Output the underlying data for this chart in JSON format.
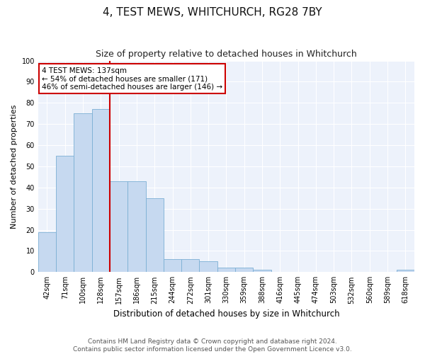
{
  "title": "4, TEST MEWS, WHITCHURCH, RG28 7BY",
  "subtitle": "Size of property relative to detached houses in Whitchurch",
  "xlabel": "Distribution of detached houses by size in Whitchurch",
  "ylabel": "Number of detached properties",
  "footer_line1": "Contains HM Land Registry data © Crown copyright and database right 2024.",
  "footer_line2": "Contains public sector information licensed under the Open Government Licence v3.0.",
  "bar_labels": [
    "42sqm",
    "71sqm",
    "100sqm",
    "128sqm",
    "157sqm",
    "186sqm",
    "215sqm",
    "244sqm",
    "272sqm",
    "301sqm",
    "330sqm",
    "359sqm",
    "388sqm",
    "416sqm",
    "445sqm",
    "474sqm",
    "503sqm",
    "532sqm",
    "560sqm",
    "589sqm",
    "618sqm"
  ],
  "bar_values": [
    19,
    55,
    75,
    77,
    43,
    43,
    35,
    6,
    6,
    5,
    2,
    2,
    1,
    0,
    0,
    0,
    0,
    0,
    0,
    0,
    1
  ],
  "bar_color": "#c6d9f0",
  "bar_edgecolor": "#7bafd4",
  "annotation_text": "4 TEST MEWS: 137sqm\n← 54% of detached houses are smaller (171)\n46% of semi-detached houses are larger (146) →",
  "annotation_box_edgecolor": "#cc0000",
  "red_line_x": 3.5,
  "ylim": [
    0,
    100
  ],
  "yticks": [
    0,
    10,
    20,
    30,
    40,
    50,
    60,
    70,
    80,
    90,
    100
  ],
  "background_color": "#edf2fb",
  "grid_color": "#ffffff",
  "title_fontsize": 11,
  "subtitle_fontsize": 9,
  "xlabel_fontsize": 8.5,
  "ylabel_fontsize": 8,
  "tick_fontsize": 7,
  "footer_fontsize": 6.5,
  "annotation_fontsize": 7.5
}
